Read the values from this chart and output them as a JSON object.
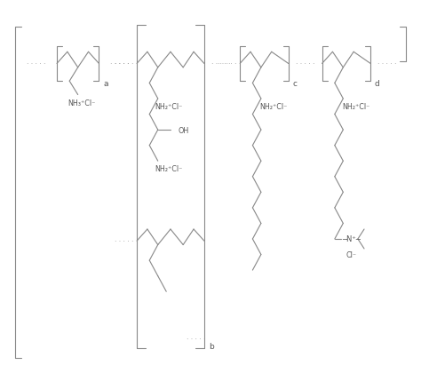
{
  "background_color": "#ffffff",
  "line_color": "#888888",
  "text_color": "#555555",
  "figsize": [
    4.74,
    4.39
  ],
  "dpi": 100,
  "NH3Cl": "NH₃⁺Cl⁻",
  "NH2Cl": "NH₂⁺Cl⁻",
  "OH": "OH",
  "NMe3_left": "–",
  "N_plus": "N⁺",
  "Cl_minus": "Cl⁻",
  "a": "a",
  "b": "b",
  "c": "c",
  "d": "d"
}
